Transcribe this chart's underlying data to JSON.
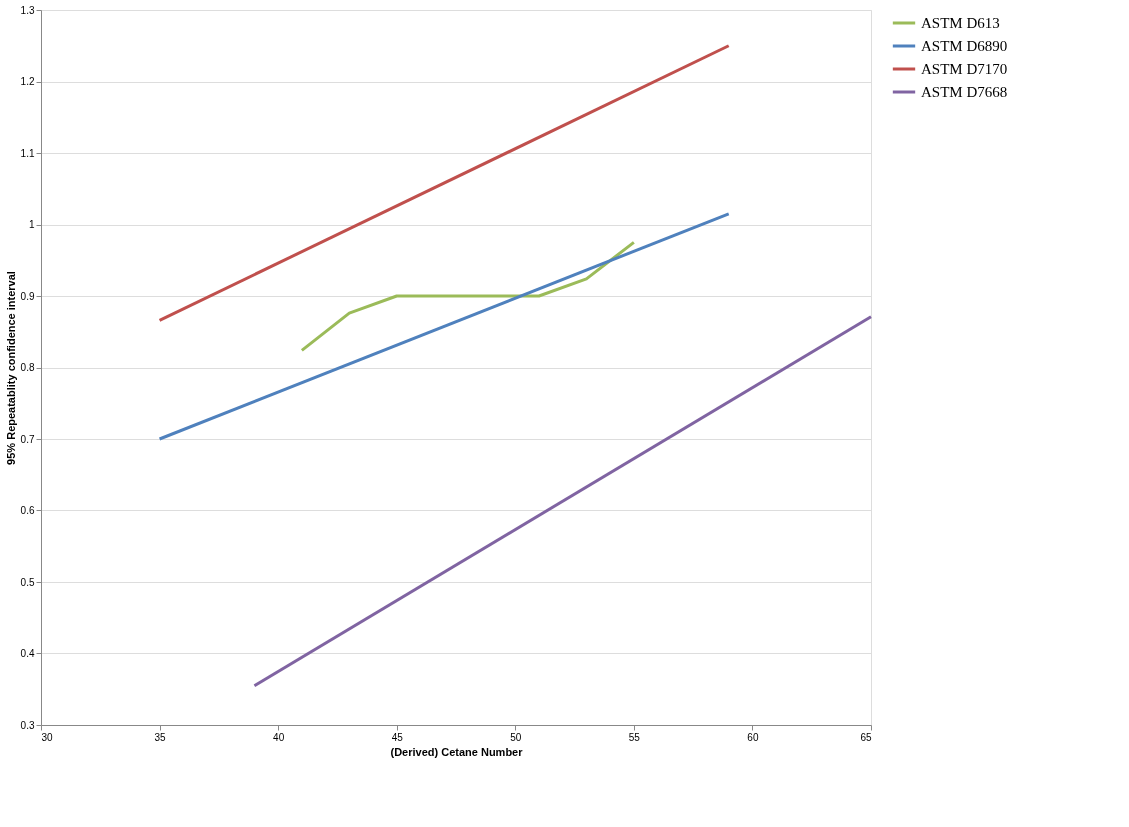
{
  "chart_data": {
    "type": "line",
    "xlabel": "(Derived) Cetane Number",
    "ylabel": "95% Repeatablity confidence interval",
    "xlim": [
      30,
      65
    ],
    "xticks": [
      30,
      35,
      40,
      45,
      50,
      55,
      60,
      65
    ],
    "ylim": [
      0.3,
      1.3
    ],
    "yticks": [
      0.3,
      0.4,
      0.5,
      0.6,
      0.7,
      0.8,
      0.9,
      1,
      1.1,
      1.2,
      1.3
    ],
    "grid": "y",
    "legend": "right",
    "marker": "none",
    "line_style": "solid",
    "series": [
      {
        "name": "ASTM D613",
        "color": "#9bbb59",
        "x": [
          41,
          43,
          45,
          47,
          49,
          51,
          53,
          55
        ],
        "values": [
          0.824,
          0.876,
          0.9,
          0.9,
          0.9,
          0.9,
          0.924,
          0.975
        ]
      },
      {
        "name": "ASTM D6890",
        "color": "#4f81bd",
        "x": [
          35,
          59
        ],
        "values": [
          0.7,
          1.015
        ]
      },
      {
        "name": "ASTM D7170",
        "color": "#c0504d",
        "x": [
          35,
          59
        ],
        "values": [
          0.866,
          1.25
        ]
      },
      {
        "name": "ASTM D7668",
        "color": "#8064a2",
        "x": [
          39,
          65
        ],
        "values": [
          0.355,
          0.871
        ]
      }
    ]
  }
}
